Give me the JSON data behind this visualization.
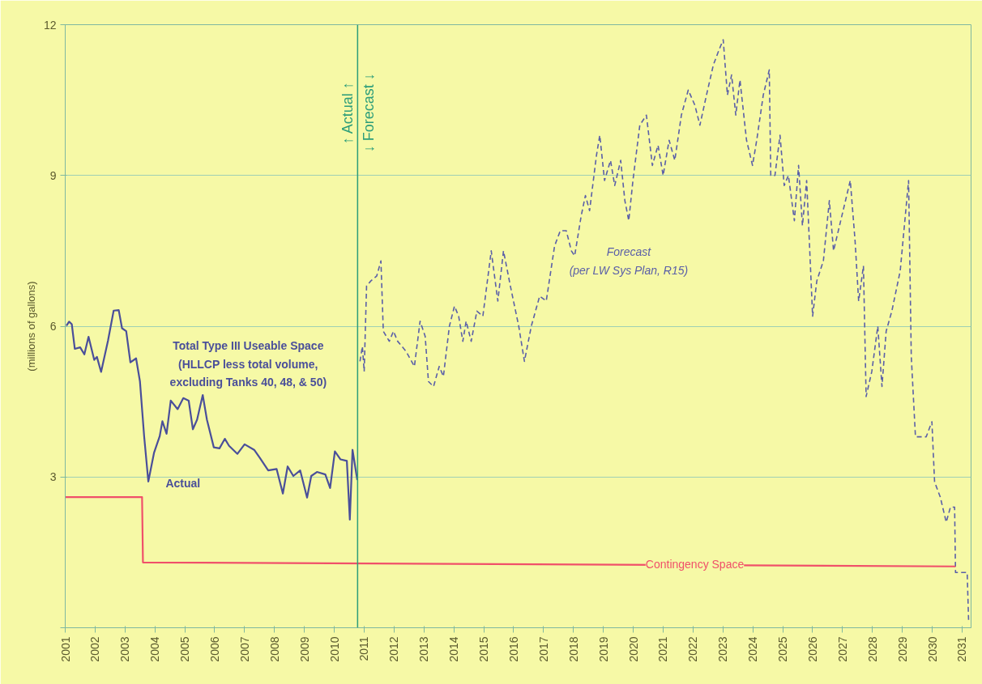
{
  "chart_data": {
    "type": "line",
    "ylabel": "(millions of gallons)",
    "xlim": [
      2001,
      2031.3
    ],
    "xticks": [
      2001,
      2002,
      2003,
      2004,
      2005,
      2006,
      2007,
      2008,
      2009,
      2010,
      2011,
      2012,
      2013,
      2014,
      2015,
      2016,
      2017,
      2018,
      2019,
      2020,
      2021,
      2022,
      2023,
      2024,
      2025,
      2026,
      2027,
      2028,
      2029,
      2030,
      2031
    ],
    "ylim": [
      0,
      12
    ],
    "yticks": [
      {
        "value": 0,
        "label": null
      },
      3,
      6,
      9,
      12
    ],
    "grid": "y",
    "marker": "none",
    "series": [
      {
        "name": "Actual",
        "color": "#4a4f9a",
        "line_style": "solid",
        "x": [
          2001.04,
          2001.13,
          2001.22,
          2001.32,
          2001.5,
          2001.64,
          2001.78,
          2001.97,
          2002.06,
          2002.2,
          2002.43,
          2002.62,
          2002.79,
          2002.9,
          2003.04,
          2003.18,
          2003.37,
          2003.5,
          2003.64,
          2003.78,
          2003.97,
          2004.16,
          2004.25,
          2004.39,
          2004.53,
          2004.76,
          2004.95,
          2005.13,
          2005.27,
          2005.41,
          2005.6,
          2005.74,
          2005.97,
          2006.16,
          2006.34,
          2006.48,
          2006.76,
          2007.0,
          2007.32,
          2007.51,
          2007.79,
          2008.07,
          2008.28,
          2008.44,
          2008.63,
          2008.86,
          2009.09,
          2009.23,
          2009.42,
          2009.7,
          2009.86,
          2010.02,
          2010.21,
          2010.42,
          2010.52,
          2010.61,
          2010.77
        ],
        "values": [
          6.01,
          6.09,
          6.04,
          5.55,
          5.58,
          5.44,
          5.79,
          5.33,
          5.39,
          5.09,
          5.71,
          6.31,
          6.32,
          5.96,
          5.9,
          5.28,
          5.36,
          4.9,
          3.81,
          2.91,
          3.48,
          3.81,
          4.11,
          3.86,
          4.52,
          4.35,
          4.57,
          4.52,
          3.95,
          4.14,
          4.63,
          4.14,
          3.59,
          3.57,
          3.76,
          3.62,
          3.46,
          3.65,
          3.54,
          3.38,
          3.13,
          3.16,
          2.67,
          3.21,
          3.02,
          3.13,
          2.59,
          3.02,
          3.1,
          3.05,
          2.78,
          3.51,
          3.35,
          3.32,
          2.15,
          3.54,
          2.94
        ]
      },
      {
        "name": "Forecast\n(per LW Sys Plan, R15)",
        "color": "#5a5fa8",
        "line_style": "dashed",
        "x": [
          2010.86,
          2010.94,
          2011.0,
          2011.08,
          2011.22,
          2011.42,
          2011.56,
          2011.64,
          2011.84,
          2011.98,
          2012.12,
          2012.4,
          2012.68,
          2012.87,
          2013.04,
          2013.15,
          2013.32,
          2013.51,
          2013.65,
          2013.85,
          2014.02,
          2014.16,
          2014.3,
          2014.41,
          2014.58,
          2014.77,
          2014.97,
          2015.25,
          2015.47,
          2015.66,
          2015.89,
          2016.17,
          2016.36,
          2016.59,
          2016.87,
          2017.09,
          2017.37,
          2017.56,
          2017.76,
          2017.93,
          2018.04,
          2018.26,
          2018.4,
          2018.54,
          2018.77,
          2018.88,
          2019.04,
          2019.24,
          2019.38,
          2019.58,
          2019.72,
          2019.85,
          2019.99,
          2020.22,
          2020.44,
          2020.64,
          2020.83,
          2021.0,
          2021.2,
          2021.39,
          2021.61,
          2021.84,
          2022.06,
          2022.23,
          2022.45,
          2022.68,
          2022.87,
          2023.01,
          2023.15,
          2023.29,
          2023.43,
          2023.57,
          2023.79,
          2023.99,
          2024.13,
          2024.35,
          2024.55,
          2024.6,
          2024.74,
          2024.91,
          2025.05,
          2025.19,
          2025.39,
          2025.53,
          2025.66,
          2025.8,
          2025.89,
          2026.0,
          2026.14,
          2026.36,
          2026.56,
          2026.7,
          2026.98,
          2027.26,
          2027.42,
          2027.54,
          2027.7,
          2027.79,
          2027.98,
          2028.18,
          2028.32,
          2028.46,
          2028.65,
          2028.93,
          2029.21,
          2029.3,
          2029.44,
          2029.8,
          2029.99,
          2030.08,
          2030.27,
          2030.47,
          2030.61,
          2030.75,
          2030.78,
          2031.17,
          2031.22
        ],
        "values": [
          5.3,
          5.6,
          5.1,
          6.8,
          6.9,
          7.0,
          7.3,
          5.9,
          5.7,
          5.9,
          5.7,
          5.5,
          5.2,
          6.1,
          5.8,
          4.9,
          4.8,
          5.2,
          5.0,
          6.0,
          6.4,
          6.2,
          5.7,
          6.1,
          5.7,
          6.3,
          6.2,
          7.5,
          6.5,
          7.5,
          6.8,
          6.0,
          5.3,
          6.0,
          6.6,
          6.5,
          7.6,
          7.9,
          7.9,
          7.5,
          7.4,
          8.2,
          8.6,
          8.3,
          9.4,
          9.8,
          8.9,
          9.3,
          8.8,
          9.3,
          8.5,
          8.1,
          8.9,
          10.0,
          10.2,
          9.2,
          9.6,
          9.0,
          9.7,
          9.3,
          10.2,
          10.7,
          10.4,
          10.0,
          10.6,
          11.2,
          11.5,
          11.7,
          10.6,
          11.0,
          10.2,
          10.9,
          9.7,
          9.2,
          9.7,
          10.6,
          11.1,
          9.0,
          9.0,
          9.8,
          8.8,
          9.0,
          8.1,
          9.2,
          8.0,
          8.9,
          7.7,
          6.2,
          6.9,
          7.3,
          8.5,
          7.5,
          8.2,
          8.9,
          7.7,
          6.5,
          7.2,
          4.6,
          5.1,
          6.0,
          4.8,
          5.9,
          6.3,
          7.1,
          8.9,
          5.4,
          3.8,
          3.8,
          4.1,
          2.9,
          2.6,
          2.1,
          2.4,
          2.4,
          1.1,
          1.1,
          0.1
        ]
      },
      {
        "name": "Contingency Space",
        "color": "#f0506a",
        "line_style": "solid",
        "x": [
          2001.0,
          2003.57,
          2003.6,
          2030.78
        ],
        "values": [
          2.6,
          2.6,
          1.3,
          1.22
        ]
      }
    ],
    "ref_lines": [
      {
        "axis": "x",
        "value": 2010.78,
        "color": "#2e9e7a",
        "label": "↑ Actual ↑"
      }
    ],
    "annotations": [
      "Total Type III Useable Space\n(HLLCP less total volume,\nexcluding Tanks 40, 48, & 50)",
      "↓ Forecast ↓"
    ]
  }
}
